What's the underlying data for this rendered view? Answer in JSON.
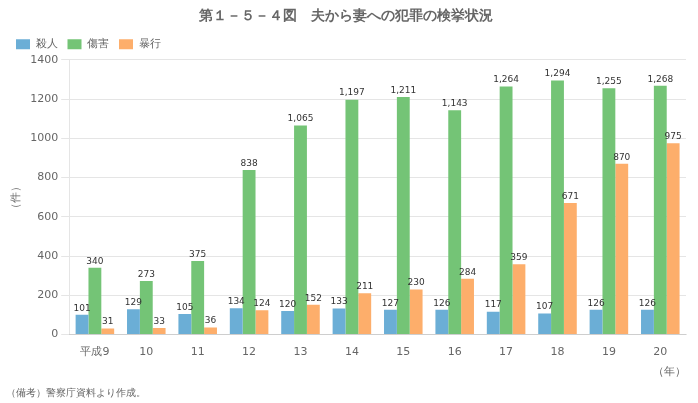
{
  "chart_data": {
    "type": "bar",
    "title": "第１－５－４図　夫から妻への犯罪の検挙状況",
    "xlabel": "（年）",
    "ylabel": "（件）",
    "annotations": [
      "（備考）警察庁資料より作成。"
    ],
    "categories": [
      "平成9",
      "10",
      "11",
      "12",
      "13",
      "14",
      "15",
      "16",
      "17",
      "18",
      "19",
      "20"
    ],
    "series": [
      {
        "name": "殺人",
        "color": "#6baed6",
        "values": [
          101,
          129,
          105,
          134,
          120,
          133,
          127,
          126,
          117,
          107,
          126,
          126
        ]
      },
      {
        "name": "傷害",
        "color": "#74c476",
        "values": [
          340,
          273,
          375,
          838,
          1065,
          1197,
          1211,
          1143,
          1264,
          1294,
          1255,
          1268
        ],
        "value_labels": [
          "340",
          "273",
          "375",
          "838",
          "1,065",
          "1,197",
          "1,211",
          "1,143",
          "1,264",
          "1,294",
          "1,255",
          "1,268"
        ]
      },
      {
        "name": "暴行",
        "color": "#fdae6b",
        "values": [
          31,
          33,
          36,
          124,
          152,
          211,
          230,
          284,
          359,
          671,
          870,
          975
        ]
      }
    ],
    "ylim": [
      0,
      1400
    ],
    "yticks": [
      0,
      200,
      400,
      600,
      800,
      1000,
      1200,
      1400
    ],
    "grid": true,
    "legend": "upper left",
    "data_labels": true
  }
}
